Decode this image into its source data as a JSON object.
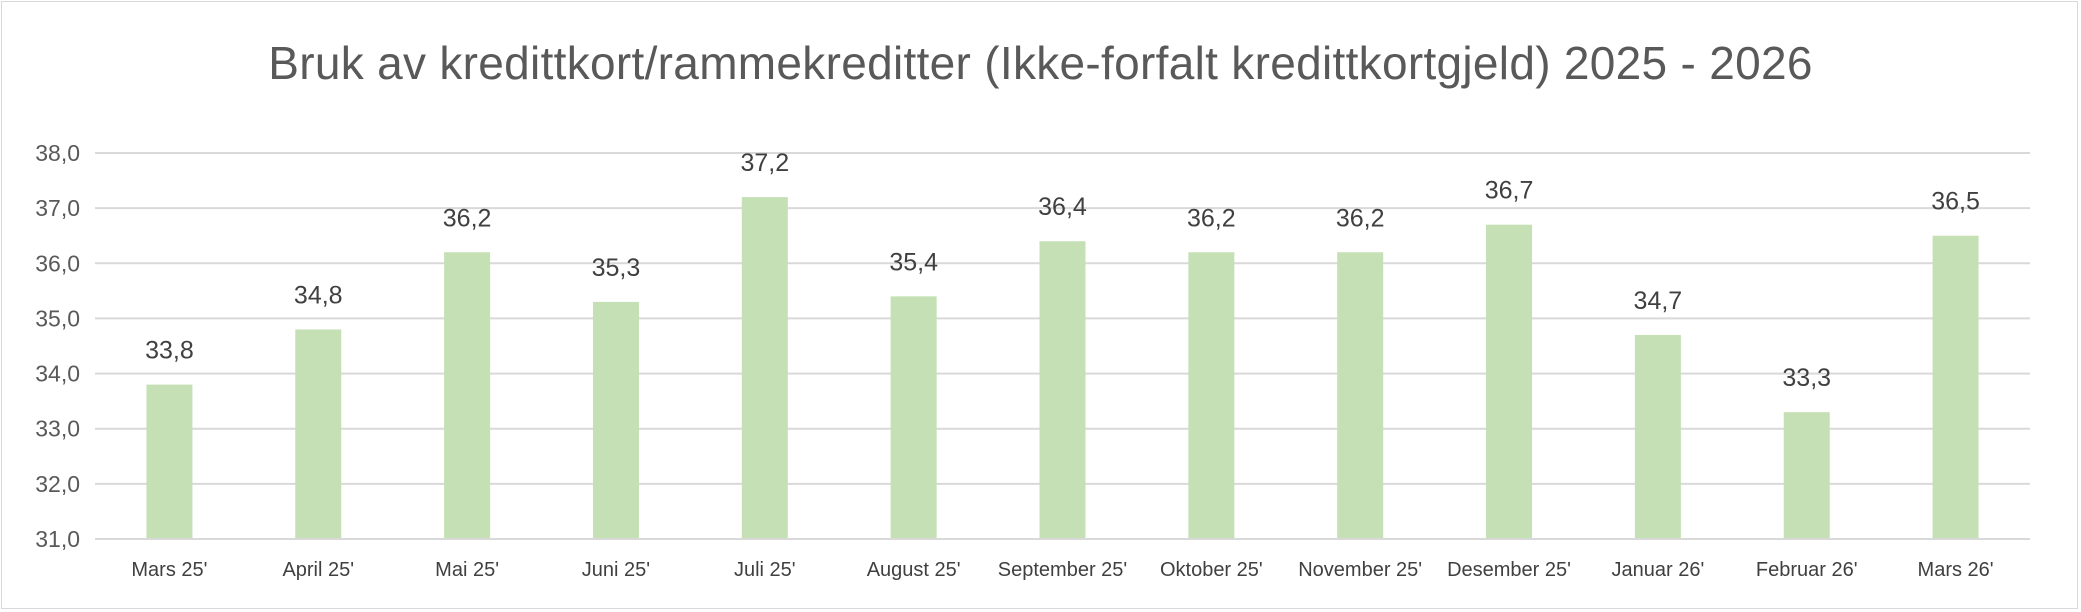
{
  "chart_data": {
    "type": "bar",
    "title": "Bruk av kredittkort/rammekreditter (Ikke-forfalt kredittkortgjeld) 2025 - 2026",
    "categories": [
      "Mars 25'",
      "April 25'",
      "Mai 25'",
      "Juni 25'",
      "Juli 25'",
      "August 25'",
      "September 25'",
      "Oktober 25'",
      "November 25'",
      "Desember 25'",
      "Januar 26'",
      "Februar 26'",
      "Mars 26'"
    ],
    "values": [
      33.8,
      34.8,
      36.2,
      35.3,
      37.2,
      35.4,
      36.4,
      36.2,
      36.2,
      36.7,
      34.7,
      33.3,
      36.5
    ],
    "data_labels": [
      "33,8",
      "34,8",
      "36,2",
      "35,3",
      "37,2",
      "35,4",
      "36,4",
      "36,2",
      "36,2",
      "36,7",
      "34,7",
      "33,3",
      "36,5"
    ],
    "y_ticks": [
      31,
      32,
      33,
      34,
      35,
      36,
      37,
      38
    ],
    "y_tick_labels": [
      "31,0",
      "32,0",
      "33,0",
      "34,0",
      "35,0",
      "36,0",
      "37,0",
      "38,0"
    ],
    "ylim": [
      31,
      38
    ],
    "xlabel": "",
    "ylabel": "",
    "grid": true,
    "legend": "none",
    "bar_color": "#c5e0b4",
    "gridline_color": "#d9d9d9"
  }
}
